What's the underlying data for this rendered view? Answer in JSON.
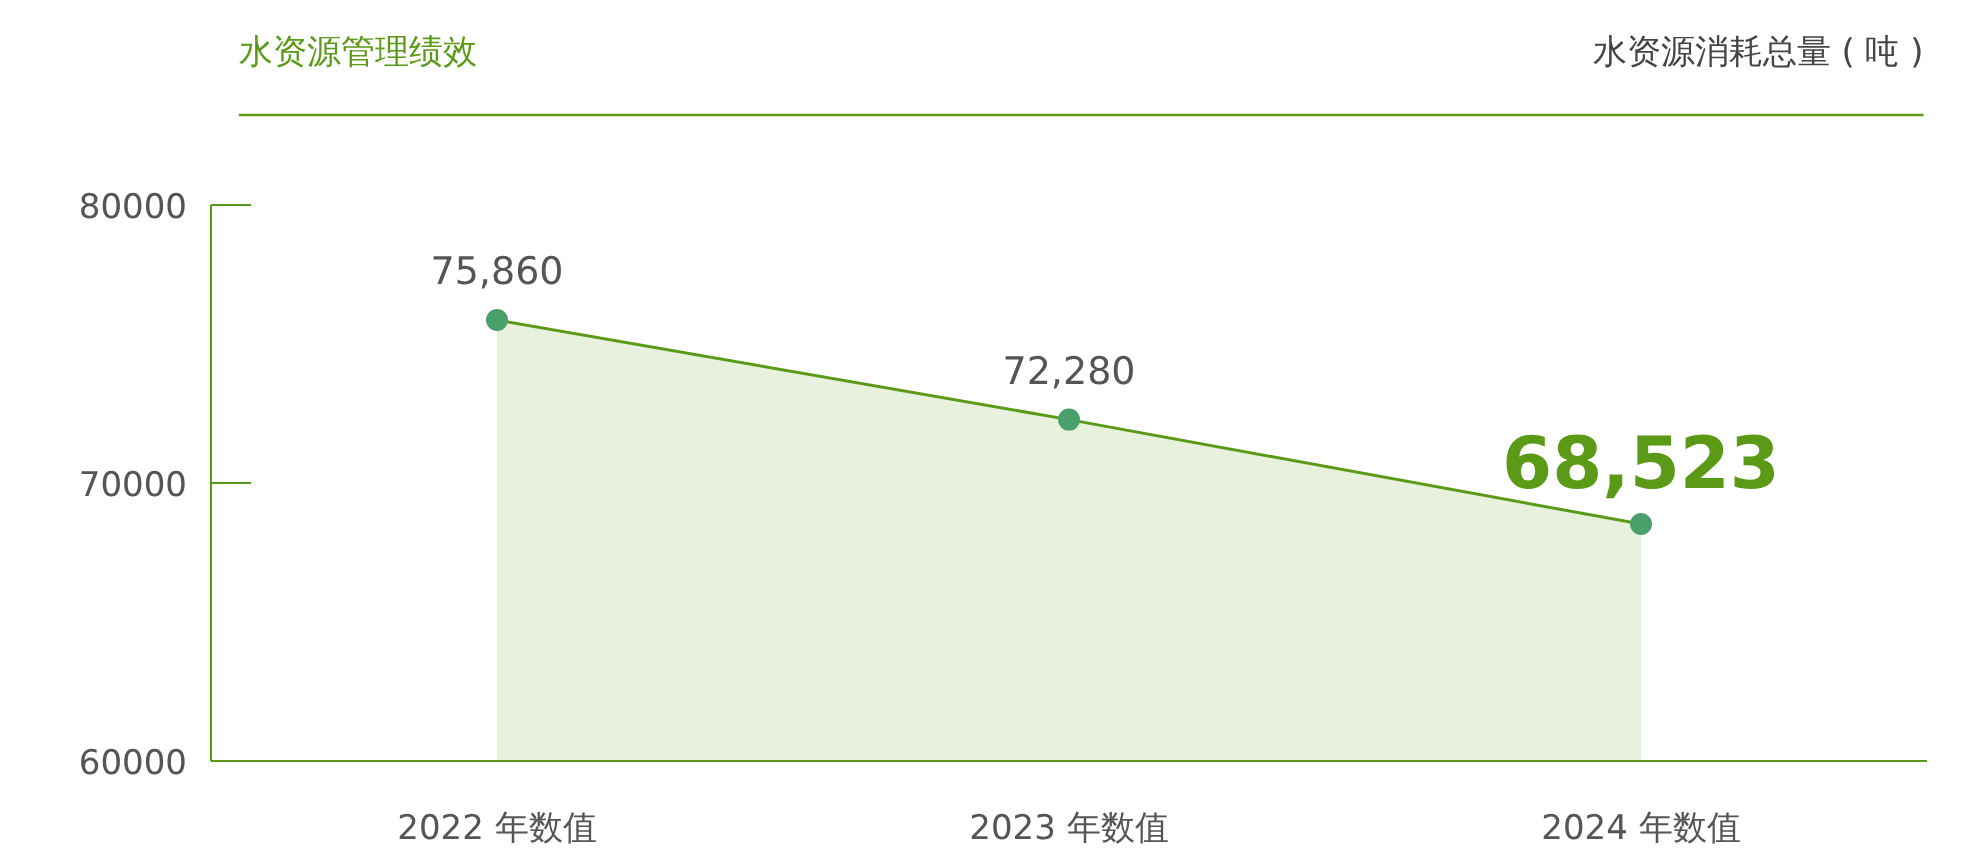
{
  "chart_data": {
    "type": "area",
    "title": "水资源管理绩效",
    "subtitle": "水资源消耗总量 ( 吨 )",
    "categories": [
      "2022 年数值",
      "2023 年数值",
      "2024 年数值"
    ],
    "series": [
      {
        "color": "#5b9a17",
        "values": [
          75860,
          72280,
          68523
        ],
        "value_labels": [
          "75,860",
          "72,280",
          "68,523"
        ]
      }
    ],
    "ylim": [
      60000,
      80000
    ],
    "yticks": [
      60000,
      70000,
      80000
    ],
    "grid": false,
    "marker": "circle",
    "line_style": "solid"
  }
}
